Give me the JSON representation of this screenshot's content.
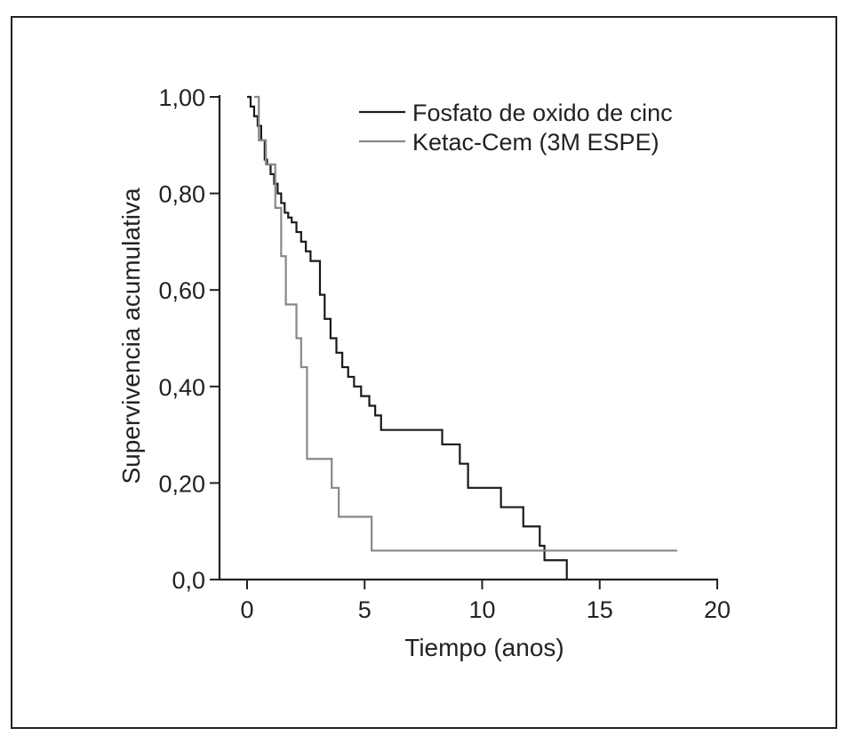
{
  "chart_data": {
    "type": "line",
    "title": "",
    "xlabel": "Tiempo (anos)",
    "ylabel": "Supervivencia acumulativa",
    "xlim": [
      0,
      20
    ],
    "ylim": [
      0,
      1
    ],
    "x_ticks": [
      0,
      5,
      10,
      15,
      20
    ],
    "x_tick_labels": [
      "0",
      "5",
      "10",
      "15",
      "20"
    ],
    "y_ticks": [
      0,
      0.2,
      0.4,
      0.6,
      0.8,
      1.0
    ],
    "y_tick_labels": [
      "0,0",
      "0,20",
      "0,40",
      "0,60",
      "0,80",
      "1,00"
    ],
    "grid": false,
    "legend_position": "top-right",
    "series": [
      {
        "name": "Fosfato de oxido de cinc",
        "color": "#1a1a1a",
        "step": true,
        "x": [
          0.0,
          0.15,
          0.3,
          0.45,
          0.6,
          0.75,
          0.85,
          1.0,
          1.15,
          1.3,
          1.45,
          1.6,
          1.75,
          1.9,
          2.1,
          2.3,
          2.5,
          2.7,
          3.1,
          3.3,
          3.55,
          3.8,
          4.05,
          4.3,
          4.55,
          4.85,
          5.2,
          5.45,
          5.7,
          6.0,
          8.3,
          9.05,
          9.4,
          10.8,
          11.75,
          12.45,
          12.65,
          13.6
        ],
        "y": [
          1.0,
          0.98,
          0.96,
          0.94,
          0.91,
          0.87,
          0.86,
          0.84,
          0.82,
          0.8,
          0.78,
          0.76,
          0.75,
          0.74,
          0.72,
          0.7,
          0.68,
          0.66,
          0.59,
          0.54,
          0.5,
          0.47,
          0.44,
          0.42,
          0.4,
          0.38,
          0.36,
          0.34,
          0.31,
          0.31,
          0.28,
          0.24,
          0.19,
          0.15,
          0.11,
          0.07,
          0.04,
          0.0
        ]
      },
      {
        "name": "Ketac-Cem (3M ESPE)",
        "color": "#888888",
        "step": true,
        "x": [
          0.3,
          0.5,
          0.8,
          1.2,
          1.45,
          1.65,
          2.1,
          2.3,
          2.55,
          3.6,
          3.9,
          5.3,
          18.3
        ],
        "y": [
          1.0,
          0.91,
          0.86,
          0.77,
          0.67,
          0.57,
          0.5,
          0.44,
          0.25,
          0.19,
          0.13,
          0.06,
          0.06
        ]
      }
    ]
  }
}
